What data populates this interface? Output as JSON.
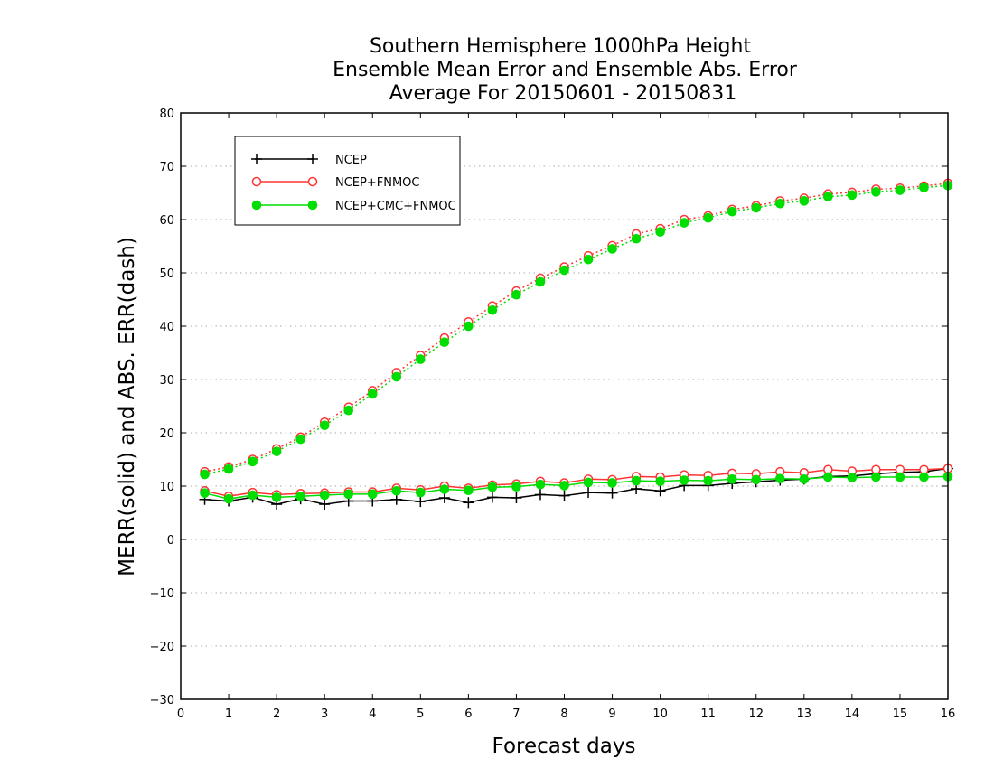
{
  "chart_data": {
    "type": "line",
    "title": [
      "Southern Hemisphere 1000hPa Height",
      "Ensemble Mean Error and Ensemble Abs. Error",
      "Average For 20150601 - 20150831"
    ],
    "xlabel": "Forecast days",
    "ylabel": "MERR(solid) and ABS. ERR(dash)",
    "xlim": [
      0,
      16
    ],
    "ylim": [
      -30,
      80
    ],
    "xticks": [
      "0",
      "1",
      "2",
      "3",
      "4",
      "5",
      "6",
      "7",
      "8",
      "9",
      "10",
      "11",
      "12",
      "13",
      "14",
      "15",
      "16"
    ],
    "yticks": [
      "−30",
      "−20",
      "−10",
      "0",
      "10",
      "20",
      "30",
      "40",
      "50",
      "60",
      "70",
      "80"
    ],
    "grid": "horizontal dotted",
    "legend_position": "top-left",
    "x": [
      0.5,
      1,
      1.5,
      2,
      2.5,
      3,
      3.5,
      4,
      4.5,
      5,
      5.5,
      6,
      6.5,
      7,
      7.5,
      8,
      8.5,
      9,
      9.5,
      10,
      10.5,
      11,
      11.5,
      12,
      12.5,
      13,
      13.5,
      14,
      14.5,
      15,
      15.5,
      16
    ],
    "series": [
      {
        "name": "NCEP",
        "color": "#000000",
        "marker": "plus",
        "merr": [
          7.5,
          7.2,
          7.9,
          6.6,
          7.6,
          6.6,
          7.2,
          7.2,
          7.5,
          7.1,
          7.8,
          6.9,
          7.9,
          7.8,
          8.4,
          8.2,
          8.8,
          8.7,
          9.5,
          9.1,
          10.1,
          10.1,
          10.5,
          10.8,
          11.1,
          11.3,
          11.8,
          11.9,
          12.3,
          12.6,
          12.7,
          13.3
        ],
        "abserr": []
      },
      {
        "name": "NCEP+FNMOC",
        "color": "#ff3333",
        "marker": "open-circle",
        "merr": [
          9.1,
          8.1,
          8.8,
          8.4,
          8.6,
          8.7,
          8.9,
          8.9,
          9.6,
          9.3,
          10.0,
          9.6,
          10.2,
          10.4,
          10.9,
          10.6,
          11.3,
          11.2,
          11.8,
          11.7,
          12.1,
          12.0,
          12.4,
          12.3,
          12.7,
          12.5,
          13.1,
          12.8,
          13.1,
          13.1,
          13.1,
          13.3
        ],
        "abserr": [
          12.7,
          13.6,
          15.0,
          17.0,
          19.2,
          22.0,
          24.8,
          27.9,
          31.3,
          34.5,
          37.8,
          40.8,
          43.8,
          46.6,
          49.0,
          51.1,
          53.2,
          55.1,
          57.3,
          58.3,
          60.0,
          60.7,
          61.9,
          62.6,
          63.5,
          64.0,
          64.8,
          65.1,
          65.7,
          65.9,
          66.3,
          66.8
        ]
      },
      {
        "name": "NCEP+CMC+FNMOC",
        "color": "#00dd00",
        "marker": "filled-circle",
        "merr": [
          8.7,
          7.6,
          8.3,
          7.9,
          8.1,
          8.3,
          8.5,
          8.5,
          9.1,
          8.8,
          9.4,
          9.2,
          9.8,
          9.9,
          10.3,
          10.1,
          10.7,
          10.6,
          11.0,
          10.9,
          11.1,
          11.0,
          11.3,
          11.2,
          11.4,
          11.3,
          11.7,
          11.6,
          11.7,
          11.7,
          11.7,
          11.8
        ],
        "abserr": [
          12.2,
          13.2,
          14.6,
          16.5,
          18.8,
          21.4,
          24.2,
          27.3,
          30.5,
          33.8,
          37.0,
          40.0,
          43.0,
          45.9,
          48.3,
          50.5,
          52.5,
          54.5,
          56.4,
          57.7,
          59.4,
          60.3,
          61.5,
          62.2,
          63.0,
          63.5,
          64.3,
          64.6,
          65.2,
          65.5,
          66.0,
          66.4
        ]
      }
    ]
  }
}
